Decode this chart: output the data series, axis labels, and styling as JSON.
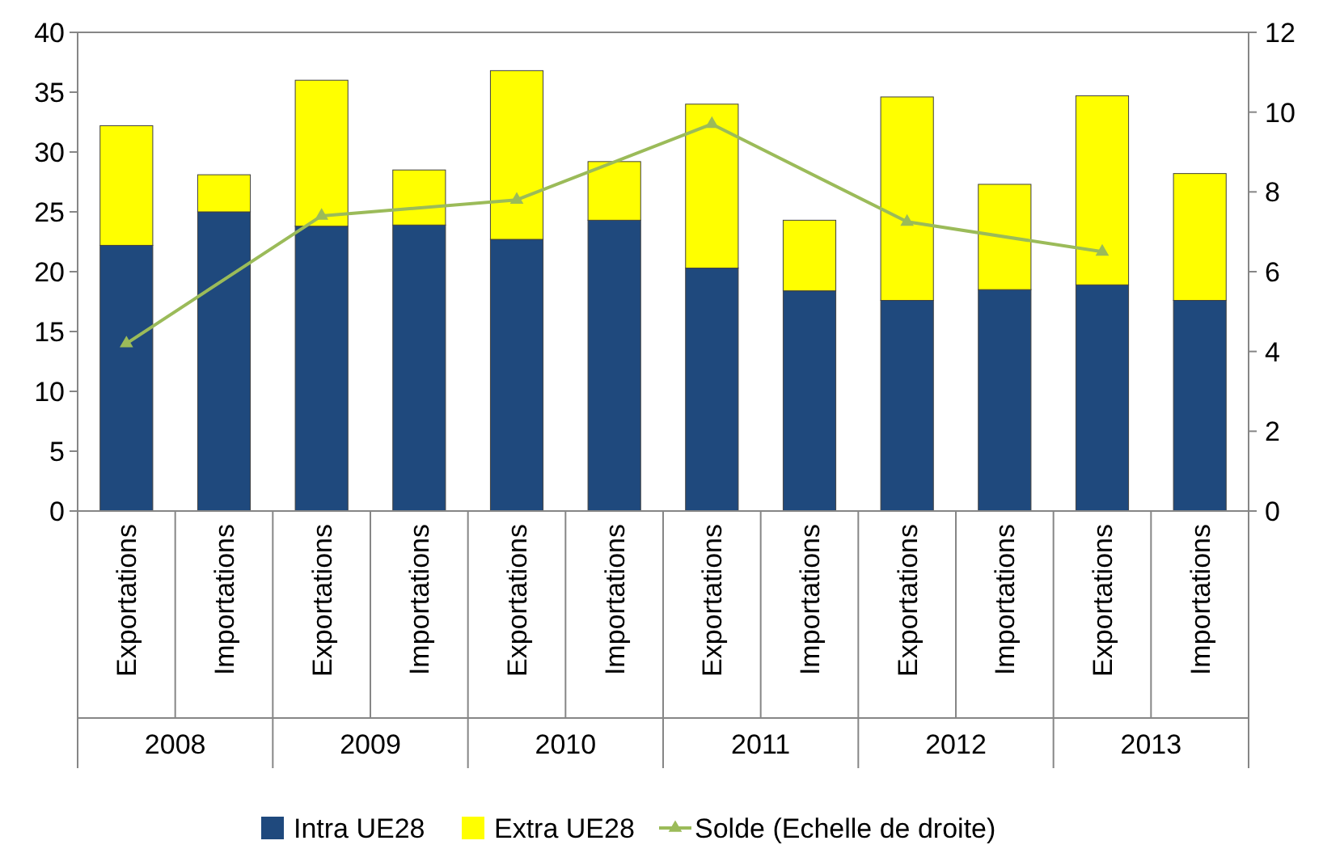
{
  "chart_data": {
    "type": "bar",
    "stacked": true,
    "categories": [
      "Exportations",
      "Importations",
      "Exportations",
      "Importations",
      "Exportations",
      "Importations",
      "Exportations",
      "Importations",
      "Exportations",
      "Importations",
      "Exportations",
      "Importations"
    ],
    "series": [
      {
        "name": "Intra UE28",
        "color": "#1f497d",
        "values": [
          22.2,
          25.0,
          23.8,
          23.9,
          22.7,
          24.3,
          20.3,
          18.4,
          17.6,
          18.5,
          18.9,
          17.6
        ]
      },
      {
        "name": "Extra UE28",
        "color": "#ffff00",
        "values": [
          10.0,
          3.1,
          12.2,
          4.6,
          14.1,
          4.9,
          13.7,
          5.9,
          17.0,
          8.8,
          15.8,
          10.6
        ]
      },
      {
        "name": "Solde (Echelle de droite)",
        "type": "line",
        "axis": "y2",
        "color": "#9bbb59",
        "marker": "triangle",
        "values": [
          4.2,
          null,
          7.4,
          null,
          7.8,
          null,
          9.7,
          null,
          7.25,
          null,
          6.5,
          null
        ]
      }
    ],
    "ylim": [
      0,
      40
    ],
    "yticks": [
      0,
      5,
      10,
      15,
      20,
      25,
      30,
      35,
      40
    ],
    "y2lim": [
      0,
      12
    ],
    "y2ticks": [
      0,
      2,
      4,
      6,
      8,
      10,
      12
    ],
    "annotations": [
      "2008",
      "2009",
      "2010",
      "2011",
      "2012",
      "2013"
    ],
    "grid": false,
    "legend": "bottom"
  }
}
